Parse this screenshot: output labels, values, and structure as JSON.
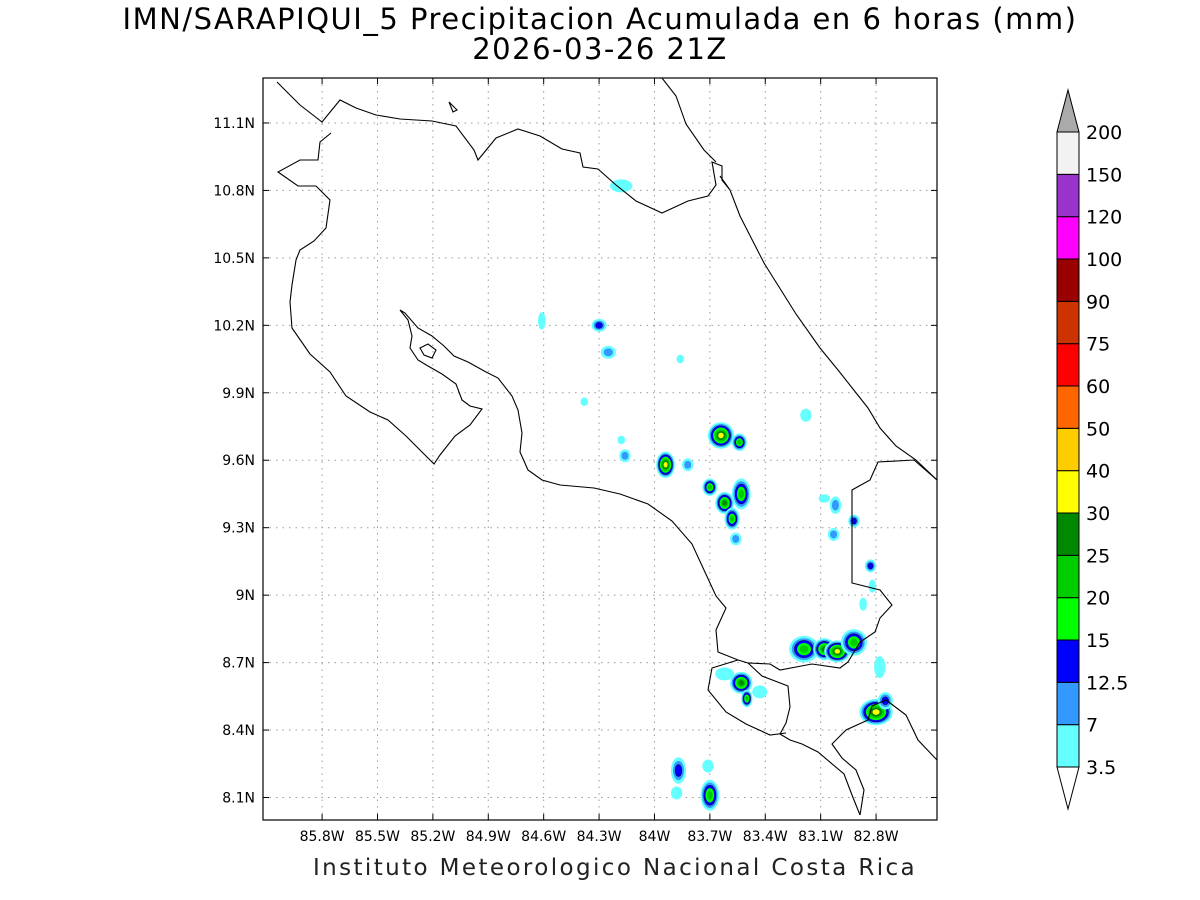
{
  "title": "IMN/SARAPIQUI_5 Precipitacion Acumulada en 6 horas (mm)",
  "subtitle": "2026-03-26 21Z",
  "footer": "Instituto Meteorologico Nacional Costa Rica",
  "map": {
    "lon_range": [
      -86.12,
      -82.47
    ],
    "lat_range": [
      8.0,
      11.3
    ],
    "lon_ticks": [
      {
        "value": -85.8,
        "label": "85.8W"
      },
      {
        "value": -85.5,
        "label": "85.5W"
      },
      {
        "value": -85.2,
        "label": "85.2W"
      },
      {
        "value": -84.9,
        "label": "84.9W"
      },
      {
        "value": -84.6,
        "label": "84.6W"
      },
      {
        "value": -84.3,
        "label": "84.3W"
      },
      {
        "value": -84.0,
        "label": "84W"
      },
      {
        "value": -83.7,
        "label": "83.7W"
      },
      {
        "value": -83.4,
        "label": "83.4W"
      },
      {
        "value": -83.1,
        "label": "83.1W"
      },
      {
        "value": -82.8,
        "label": "82.8W"
      }
    ],
    "lat_ticks": [
      {
        "value": 11.1,
        "label": "11.1N"
      },
      {
        "value": 10.8,
        "label": "10.8N"
      },
      {
        "value": 10.5,
        "label": "10.5N"
      },
      {
        "value": 10.2,
        "label": "10.2N"
      },
      {
        "value": 9.9,
        "label": "9.9N"
      },
      {
        "value": 9.6,
        "label": "9.6N"
      },
      {
        "value": 9.3,
        "label": "9.3N"
      },
      {
        "value": 9.0,
        "label": "9N"
      },
      {
        "value": 8.7,
        "label": "8.7N"
      },
      {
        "value": 8.4,
        "label": "8.4N"
      },
      {
        "value": 8.1,
        "label": "8.1N"
      }
    ],
    "grid": true,
    "projection": "lat-lon"
  },
  "colorbar": {
    "units": "mm",
    "levels": [
      {
        "label": "3.5",
        "color": "#66ffff"
      },
      {
        "label": "7",
        "color": "#3399ff"
      },
      {
        "label": "12.5",
        "color": "#0000ff"
      },
      {
        "label": "15",
        "color": "#00ff00"
      },
      {
        "label": "20",
        "color": "#00cc00"
      },
      {
        "label": "25",
        "color": "#008800"
      },
      {
        "label": "30",
        "color": "#ffff00"
      },
      {
        "label": "40",
        "color": "#ffcc00"
      },
      {
        "label": "50",
        "color": "#ff6600"
      },
      {
        "label": "60",
        "color": "#ff0000"
      },
      {
        "label": "75",
        "color": "#cc3300"
      },
      {
        "label": "90",
        "color": "#990000"
      },
      {
        "label": "100",
        "color": "#ff00ff"
      },
      {
        "label": "120",
        "color": "#9933cc"
      },
      {
        "label": "150",
        "color": "#f2f2f2"
      },
      {
        "label": "200",
        "color": "#aaaaaa"
      }
    ]
  },
  "precip_cells": [
    {
      "lon": -84.18,
      "lat": 10.82,
      "rx": 0.05,
      "ry": 0.02,
      "level": 0
    },
    {
      "lon": -84.3,
      "lat": 10.2,
      "rx": 0.03,
      "ry": 0.02,
      "level": 2
    },
    {
      "lon": -84.25,
      "lat": 10.08,
      "rx": 0.03,
      "ry": 0.02,
      "level": 1
    },
    {
      "lon": -84.61,
      "lat": 10.22,
      "rx": 0.01,
      "ry": 0.03,
      "level": 0
    },
    {
      "lon": -83.86,
      "lat": 10.05,
      "rx": 0.01,
      "ry": 0.01,
      "level": 0
    },
    {
      "lon": -84.38,
      "lat": 9.86,
      "rx": 0.01,
      "ry": 0.01,
      "level": 0
    },
    {
      "lon": -84.18,
      "lat": 9.69,
      "rx": 0.01,
      "ry": 0.01,
      "level": 0
    },
    {
      "lon": -84.16,
      "lat": 9.62,
      "rx": 0.02,
      "ry": 0.02,
      "level": 1
    },
    {
      "lon": -83.94,
      "lat": 9.58,
      "rx": 0.04,
      "ry": 0.05,
      "level": 6
    },
    {
      "lon": -83.82,
      "lat": 9.58,
      "rx": 0.02,
      "ry": 0.02,
      "level": 1
    },
    {
      "lon": -83.64,
      "lat": 9.71,
      "rx": 0.06,
      "ry": 0.05,
      "level": 6
    },
    {
      "lon": -83.54,
      "lat": 9.68,
      "rx": 0.03,
      "ry": 0.03,
      "level": 4
    },
    {
      "lon": -83.7,
      "lat": 9.48,
      "rx": 0.03,
      "ry": 0.03,
      "level": 4
    },
    {
      "lon": -83.62,
      "lat": 9.41,
      "rx": 0.04,
      "ry": 0.04,
      "level": 5
    },
    {
      "lon": -83.58,
      "lat": 9.34,
      "rx": 0.03,
      "ry": 0.04,
      "level": 4
    },
    {
      "lon": -83.53,
      "lat": 9.45,
      "rx": 0.04,
      "ry": 0.06,
      "level": 4
    },
    {
      "lon": -83.56,
      "lat": 9.25,
      "rx": 0.02,
      "ry": 0.02,
      "level": 1
    },
    {
      "lon": -83.18,
      "lat": 9.8,
      "rx": 0.02,
      "ry": 0.02,
      "level": 0
    },
    {
      "lon": -83.08,
      "lat": 9.43,
      "rx": 0.02,
      "ry": 0.01,
      "level": 0
    },
    {
      "lon": -83.02,
      "lat": 9.4,
      "rx": 0.02,
      "ry": 0.03,
      "level": 1
    },
    {
      "lon": -83.03,
      "lat": 9.27,
      "rx": 0.02,
      "ry": 0.02,
      "level": 1
    },
    {
      "lon": -82.92,
      "lat": 9.33,
      "rx": 0.02,
      "ry": 0.02,
      "level": 2
    },
    {
      "lon": -82.83,
      "lat": 9.13,
      "rx": 0.02,
      "ry": 0.02,
      "level": 2
    },
    {
      "lon": -82.82,
      "lat": 9.04,
      "rx": 0.01,
      "ry": 0.02,
      "level": 0
    },
    {
      "lon": -82.87,
      "lat": 8.96,
      "rx": 0.01,
      "ry": 0.02,
      "level": 0
    },
    {
      "lon": -83.19,
      "lat": 8.76,
      "rx": 0.07,
      "ry": 0.05,
      "level": 4
    },
    {
      "lon": -83.08,
      "lat": 8.76,
      "rx": 0.05,
      "ry": 0.04,
      "level": 5
    },
    {
      "lon": -83.01,
      "lat": 8.75,
      "rx": 0.06,
      "ry": 0.04,
      "level": 6
    },
    {
      "lon": -82.92,
      "lat": 8.79,
      "rx": 0.06,
      "ry": 0.05,
      "level": 4
    },
    {
      "lon": -82.8,
      "lat": 8.48,
      "rx": 0.08,
      "ry": 0.05,
      "level": 6
    },
    {
      "lon": -82.75,
      "lat": 8.53,
      "rx": 0.03,
      "ry": 0.03,
      "level": 2
    },
    {
      "lon": -82.78,
      "lat": 8.68,
      "rx": 0.02,
      "ry": 0.04,
      "level": 0
    },
    {
      "lon": -83.53,
      "lat": 8.61,
      "rx": 0.05,
      "ry": 0.04,
      "level": 5
    },
    {
      "lon": -83.5,
      "lat": 8.54,
      "rx": 0.02,
      "ry": 0.03,
      "level": 4
    },
    {
      "lon": -83.62,
      "lat": 8.65,
      "rx": 0.04,
      "ry": 0.02,
      "level": 0
    },
    {
      "lon": -83.43,
      "lat": 8.57,
      "rx": 0.03,
      "ry": 0.02,
      "level": 0
    },
    {
      "lon": -83.87,
      "lat": 8.22,
      "rx": 0.03,
      "ry": 0.05,
      "level": 2
    },
    {
      "lon": -83.88,
      "lat": 8.12,
      "rx": 0.02,
      "ry": 0.02,
      "level": 0
    },
    {
      "lon": -83.71,
      "lat": 8.24,
      "rx": 0.02,
      "ry": 0.02,
      "level": 0
    },
    {
      "lon": -83.7,
      "lat": 8.11,
      "rx": 0.04,
      "ry": 0.06,
      "level": 4
    }
  ]
}
